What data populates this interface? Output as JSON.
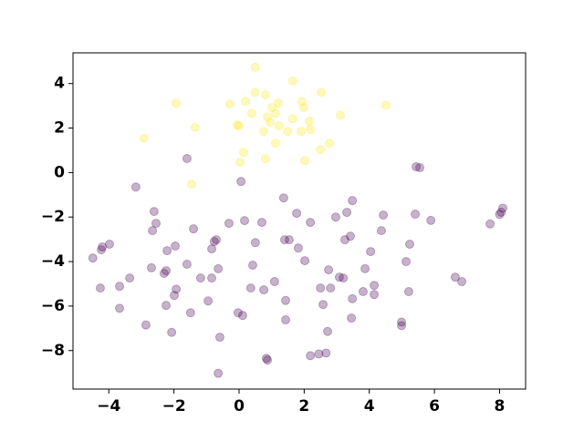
{
  "chart_data": {
    "type": "scatter",
    "xlim": [
      -5.1,
      8.8
    ],
    "ylim": [
      -9.73,
      5.38
    ],
    "xticks": [
      {
        "value": -4,
        "label": "−4"
      },
      {
        "value": -2,
        "label": "−2"
      },
      0,
      2,
      4,
      6,
      8
    ],
    "yticks": [
      {
        "value": -8,
        "label": "−8"
      },
      {
        "value": -6,
        "label": "−6"
      },
      {
        "value": -4,
        "label": "−4"
      },
      {
        "value": -2,
        "label": "−2"
      },
      0,
      2,
      4
    ],
    "alpha": 0.3,
    "series": [
      {
        "color": "#fde725",
        "x": [
          0.5,
          1.65,
          -1.93,
          -0.28,
          0.5,
          0.81,
          0.2,
          2.52,
          1.93,
          1.99,
          1.21,
          1.01,
          0.39,
          0.87,
          1.12,
          1.65,
          2.16,
          0.95,
          1.23,
          -0.06,
          0,
          -1.35,
          0.76,
          1.49,
          1.91,
          2.19,
          3.11,
          4.51,
          -2.92,
          1.12,
          2.78,
          2.5,
          0.14,
          0.03,
          0.81,
          2.02,
          -1.46
        ],
        "values": [
          4.73,
          4.12,
          3.12,
          3.08,
          3.6,
          3.49,
          3.2,
          3.6,
          3.2,
          2.92,
          3.12,
          2.92,
          2.66,
          2.5,
          2.66,
          2.42,
          2.3,
          2.26,
          2.1,
          2.14,
          2.1,
          2.02,
          1.85,
          1.85,
          1.85,
          1.94,
          2.58,
          3.03,
          1.54,
          1.32,
          1.32,
          1.03,
          0.91,
          0.46,
          0.63,
          0.54,
          -0.52
        ]
      },
      {
        "color": "#440154",
        "x": [
          -1.6,
          5.44,
          5.55,
          0.06,
          -3.17,
          1.37,
          3.48,
          -2.61,
          1.77,
          3.31,
          4.43,
          5.41,
          2.97,
          8.1,
          8.05,
          8.0,
          7.71,
          5.89,
          -2.55,
          0.7,
          0.17,
          -0.31,
          2.19,
          -1.4,
          -2.66,
          4.37,
          3.42,
          3.25,
          1.4,
          1.54,
          0.5,
          -0.7,
          -0.76,
          5.24,
          -1.96,
          -3.98,
          -4.2,
          -4.23,
          -0.84,
          -2.21,
          1.82,
          4.04,
          2.02,
          -4.49,
          5.13,
          -1.6,
          0.42,
          -2.24,
          -2.69,
          -0.64,
          2.75,
          3.87,
          -2.3,
          -3.36,
          -1.18,
          -0.84,
          3.08,
          3.2,
          -4.26,
          -3.67,
          -1.93,
          0.36,
          0.76,
          1.09,
          2.5,
          2.81,
          3.81,
          4.15,
          4.15,
          5.21,
          6.64,
          6.84,
          -1.99,
          1.43,
          3.48,
          -0.95,
          -2.24,
          2.58,
          -3.67,
          -1.49,
          -0.03,
          0.11,
          1.43,
          3.45,
          -2.86,
          4.99,
          4.99,
          -2.07,
          -0.59,
          2.72,
          0.84,
          0.87,
          2.19,
          2.45,
          2.67,
          -0.64
        ],
        "values": [
          0.63,
          0.26,
          0.22,
          -0.4,
          -0.65,
          -1.14,
          -1.26,
          -1.75,
          -1.83,
          -1.79,
          -1.91,
          -1.87,
          -2.0,
          -1.6,
          -1.78,
          -1.88,
          -2.31,
          -2.15,
          -2.28,
          -2.24,
          -2.16,
          -2.28,
          -2.24,
          -2.53,
          -2.61,
          -2.61,
          -2.86,
          -3.02,
          -3.02,
          -3.02,
          -3.15,
          -3.02,
          -3.1,
          -3.22,
          -3.3,
          -3.22,
          -3.34,
          -3.47,
          -3.43,
          -3.51,
          -3.39,
          -3.55,
          -3.96,
          -3.84,
          -4.0,
          -4.12,
          -4.16,
          -4.41,
          -4.28,
          -4.32,
          -4.37,
          -4.32,
          -4.53,
          -4.74,
          -4.74,
          -4.74,
          -4.7,
          -4.74,
          -5.19,
          -5.11,
          -5.24,
          -5.19,
          -5.27,
          -4.9,
          -5.19,
          -5.19,
          -5.35,
          -5.07,
          -5.48,
          -5.35,
          -4.7,
          -4.9,
          -5.52,
          -5.75,
          -5.67,
          -5.77,
          -5.97,
          -5.93,
          -6.1,
          -6.3,
          -6.3,
          -6.42,
          -6.62,
          -6.54,
          -6.85,
          -6.72,
          -6.88,
          -7.18,
          -7.4,
          -7.14,
          -8.35,
          -8.43,
          -8.23,
          -8.15,
          -8.11,
          -9.02
        ]
      }
    ]
  }
}
